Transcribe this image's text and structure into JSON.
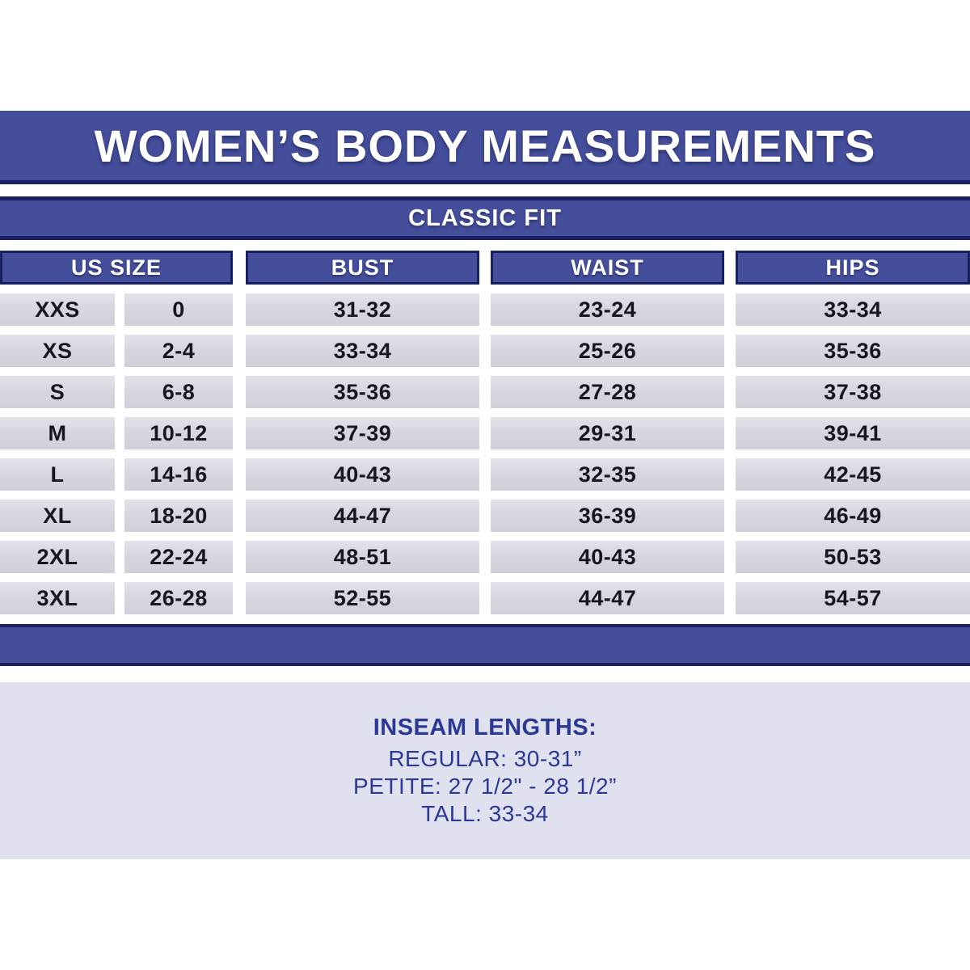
{
  "title": "WOMEN’S BODY MEASUREMENTS",
  "fit_label": "CLASSIC FIT",
  "table": {
    "headers": [
      "US SIZE",
      "BUST",
      "WAIST",
      "HIPS"
    ],
    "rows": [
      {
        "size": "XXS",
        "us": "0",
        "bust": "31-32",
        "waist": "23-24",
        "hips": "33-34"
      },
      {
        "size": "XS",
        "us": "2-4",
        "bust": "33-34",
        "waist": "25-26",
        "hips": "35-36"
      },
      {
        "size": "S",
        "us": "6-8",
        "bust": "35-36",
        "waist": "27-28",
        "hips": "37-38"
      },
      {
        "size": "M",
        "us": "10-12",
        "bust": "37-39",
        "waist": "29-31",
        "hips": "39-41"
      },
      {
        "size": "L",
        "us": "14-16",
        "bust": "40-43",
        "waist": "32-35",
        "hips": "42-45"
      },
      {
        "size": "XL",
        "us": "18-20",
        "bust": "44-47",
        "waist": "36-39",
        "hips": "46-49"
      },
      {
        "size": "2XL",
        "us": "22-24",
        "bust": "48-51",
        "waist": "40-43",
        "hips": "50-53"
      },
      {
        "size": "3XL",
        "us": "26-28",
        "bust": "52-55",
        "waist": "44-47",
        "hips": "54-57"
      }
    ]
  },
  "inseam": {
    "heading": "INSEAM LENGTHS:",
    "lines": [
      "REGULAR: 30-31”",
      "PETITE: 27 1/2\" - 28 1/2”",
      "TALL: 33-34"
    ]
  },
  "colors": {
    "band_blue": "#454e9b",
    "border_navy": "#1b2060",
    "cell_gray": "#d6d7df",
    "panel_lavender": "#dfe1ee",
    "inseam_text_navy": "#2b3896",
    "cell_text": "#17171f"
  }
}
